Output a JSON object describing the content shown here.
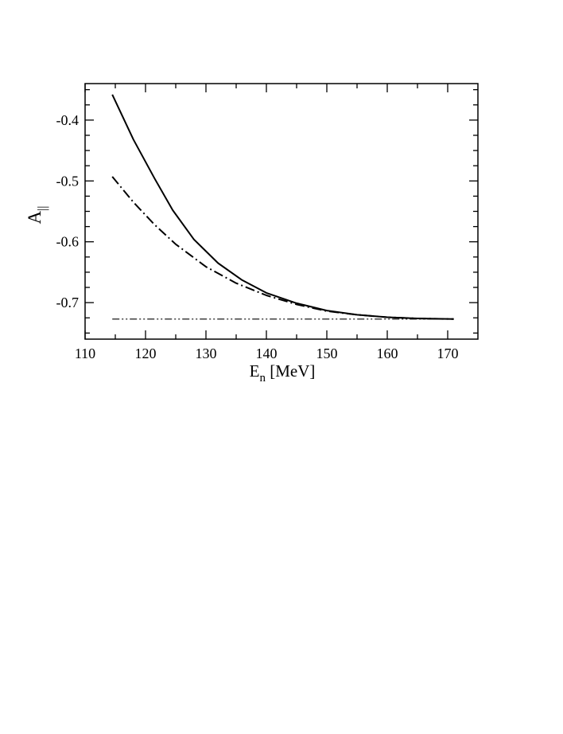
{
  "chart_data": {
    "type": "line",
    "title": "",
    "xlabel": {
      "main": "E",
      "subscript": "n",
      "rest": " [MeV]"
    },
    "ylabel": {
      "main": "A",
      "subscript": "||"
    },
    "xlim": [
      110,
      175
    ],
    "ylim": [
      -0.76,
      -0.34
    ],
    "x_ticks": [
      110,
      120,
      130,
      140,
      150,
      160,
      170
    ],
    "x_tick_labels": [
      "110",
      "120",
      "130",
      "140",
      "150",
      "160",
      "170"
    ],
    "y_ticks": [
      -0.4,
      -0.5,
      -0.6,
      -0.7
    ],
    "y_tick_labels": [
      "-0.4",
      "-0.5",
      "-0.6",
      "-0.7"
    ],
    "x_minor_step": 5,
    "y_minor_step": 0.025,
    "grid": false,
    "legend": "none",
    "series": [
      {
        "style": "solid",
        "color": "#000000",
        "points": [
          [
            114.5,
            -0.358
          ],
          [
            118.0,
            -0.432
          ],
          [
            121.5,
            -0.496
          ],
          [
            124.5,
            -0.548
          ],
          [
            128.0,
            -0.596
          ],
          [
            132.0,
            -0.635
          ],
          [
            136.0,
            -0.663
          ],
          [
            140.0,
            -0.684
          ],
          [
            145.0,
            -0.701
          ],
          [
            150.0,
            -0.713
          ],
          [
            155.0,
            -0.72
          ],
          [
            160.0,
            -0.724
          ],
          [
            165.0,
            -0.726
          ],
          [
            171.0,
            -0.727
          ]
        ]
      },
      {
        "style": "dash-dot",
        "color": "#000000",
        "points": [
          [
            114.5,
            -0.493
          ],
          [
            118.0,
            -0.535
          ],
          [
            121.5,
            -0.572
          ],
          [
            125.0,
            -0.604
          ],
          [
            130.0,
            -0.641
          ],
          [
            135.0,
            -0.668
          ],
          [
            140.0,
            -0.688
          ],
          [
            145.0,
            -0.703
          ],
          [
            150.0,
            -0.714
          ],
          [
            155.0,
            -0.72
          ],
          [
            160.0,
            -0.724
          ],
          [
            165.0,
            -0.726
          ],
          [
            171.0,
            -0.727
          ]
        ]
      },
      {
        "style": "dash-dot-dot",
        "color": "#000000",
        "points": [
          [
            114.5,
            -0.727
          ],
          [
            171.0,
            -0.727
          ]
        ]
      }
    ]
  }
}
